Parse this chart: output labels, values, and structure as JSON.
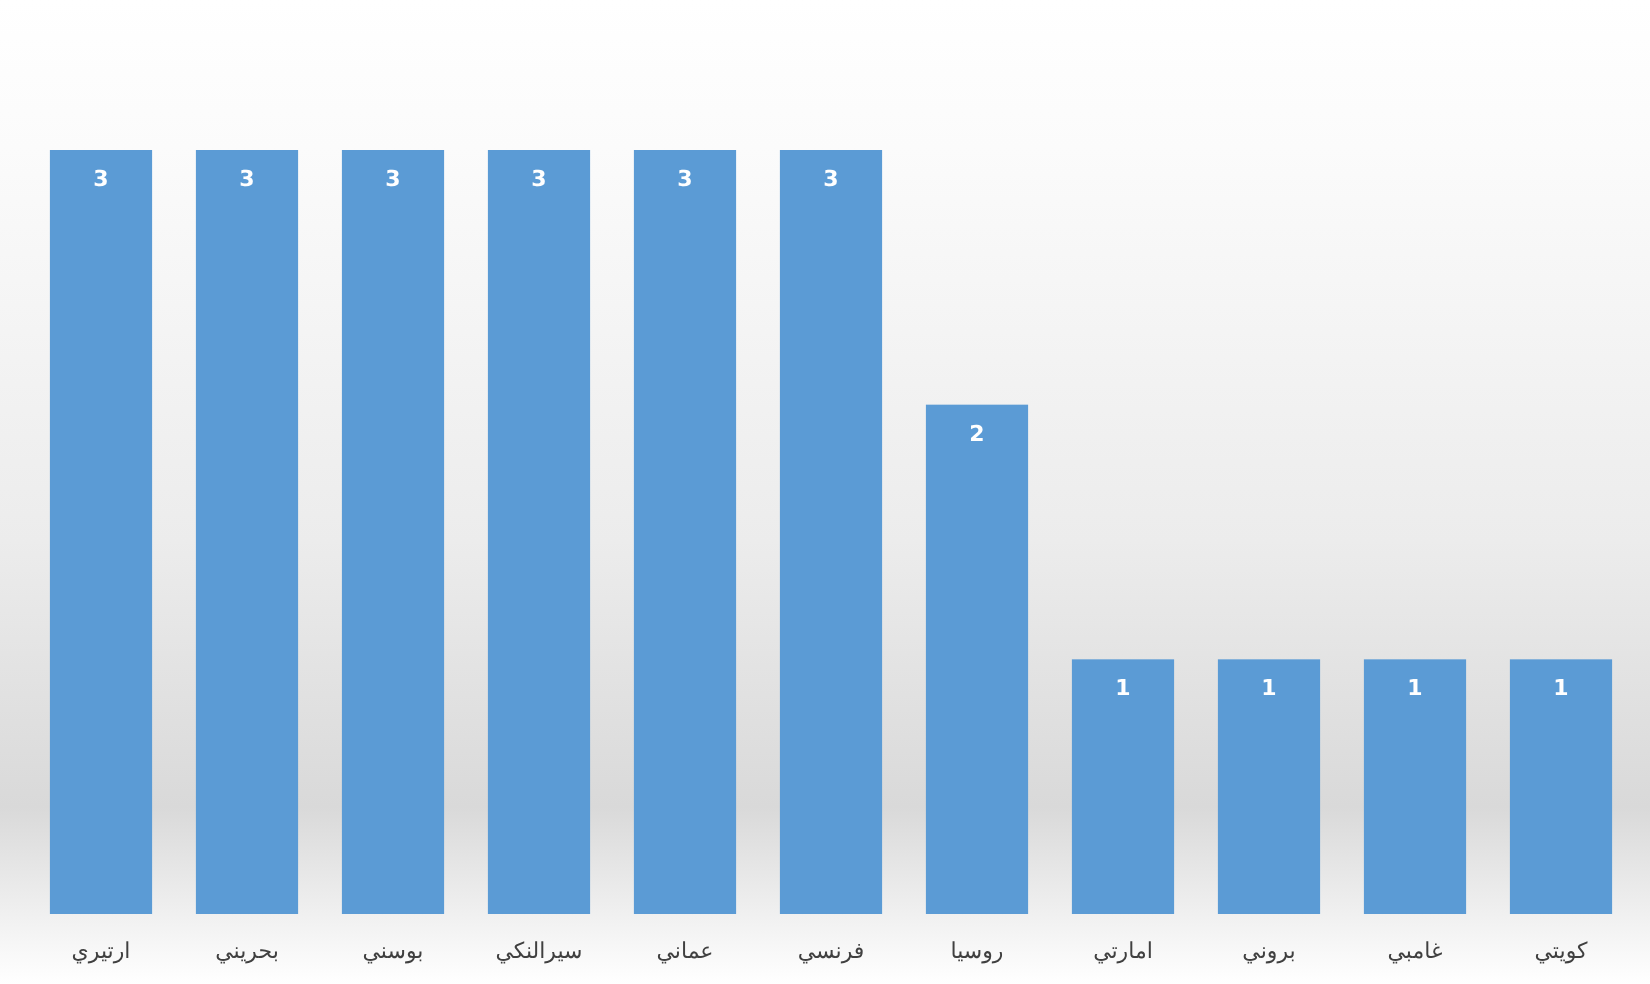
{
  "chart_data": {
    "type": "bar",
    "categories": [
      "ارتيري",
      "بحريني",
      "بوسني",
      "سيرالنكي",
      "عماني",
      "فرنسي",
      "روسيا",
      "امارتي",
      "بروني",
      "غامبي",
      "كويتي"
    ],
    "values": [
      3,
      3,
      3,
      3,
      3,
      3,
      2,
      1,
      1,
      1,
      1
    ],
    "color": "#5b9bd5",
    "data_labels": true
  }
}
